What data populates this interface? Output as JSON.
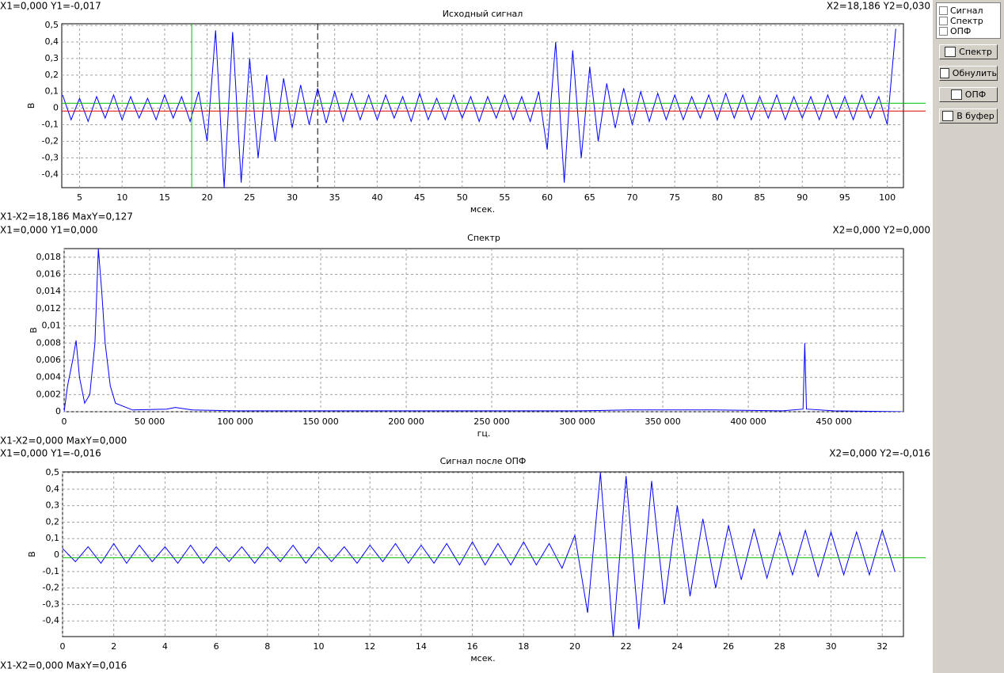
{
  "chart_data": [
    {
      "type": "line",
      "title": "Исходный сигнал",
      "color": "#0000ff",
      "ylabel": "В",
      "xlabel": "мсек.",
      "cursor_left": "X1=0,000 Y1=-0,017",
      "cursor_right": "X2=18,186 Y2=0,030",
      "cursor_diff": "X1-X2=18,186 MaxY=0,127",
      "cursors": {
        "x2": 18.186,
        "y1": -0.017,
        "y2": 0.03
      },
      "marker_x": 33,
      "xlim": [
        2.9,
        101.9
      ],
      "ylim": [
        -0.48,
        0.51
      ],
      "grid": true,
      "xticks": [
        5,
        10,
        15,
        20,
        25,
        30,
        35,
        40,
        45,
        50,
        55,
        60,
        65,
        70,
        75,
        80,
        85,
        90,
        95,
        100
      ],
      "yticks": [
        {
          "value": 0.5,
          "label": "0,5"
        },
        {
          "value": 0.4,
          "label": "0,4"
        },
        {
          "value": 0.3,
          "label": "0,3"
        },
        {
          "value": 0.2,
          "label": "0,2"
        },
        {
          "value": 0.1,
          "label": "0,1"
        },
        0,
        {
          "value": -0.1,
          "label": "-0,1"
        },
        {
          "value": -0.2,
          "label": "-0,2"
        },
        {
          "value": -0.3,
          "label": "-0,3"
        },
        {
          "value": -0.4,
          "label": "-0,4"
        }
      ],
      "x": [
        3,
        4,
        5,
        6,
        7,
        8,
        9,
        10,
        11,
        12,
        13,
        14,
        15,
        16,
        17,
        18,
        19,
        20,
        21,
        22,
        23,
        24,
        25,
        26,
        27,
        28,
        29,
        30,
        31,
        32,
        33,
        34,
        35,
        36,
        37,
        38,
        39,
        40,
        41,
        42,
        43,
        44,
        45,
        46,
        47,
        48,
        49,
        50,
        51,
        52,
        53,
        54,
        55,
        56,
        57,
        58,
        59,
        60,
        61,
        62,
        63,
        64,
        65,
        66,
        67,
        68,
        69,
        70,
        71,
        72,
        73,
        74,
        75,
        76,
        77,
        78,
        79,
        80,
        81,
        82,
        83,
        84,
        85,
        86,
        87,
        88,
        89,
        90,
        91,
        92,
        93,
        94,
        95,
        96,
        97,
        98,
        99,
        100,
        101
      ],
      "values": [
        0.08,
        -0.07,
        0.06,
        -0.08,
        0.07,
        -0.06,
        0.08,
        -0.07,
        0.07,
        -0.06,
        0.06,
        -0.07,
        0.08,
        -0.06,
        0.07,
        -0.08,
        0.1,
        -0.2,
        0.47,
        -0.48,
        0.46,
        -0.45,
        0.3,
        -0.3,
        0.2,
        -0.2,
        0.18,
        -0.12,
        0.14,
        -0.1,
        0.12,
        -0.09,
        0.1,
        -0.08,
        0.09,
        -0.07,
        0.08,
        -0.07,
        0.08,
        -0.06,
        0.07,
        -0.08,
        0.09,
        -0.07,
        0.06,
        -0.07,
        0.08,
        -0.06,
        0.07,
        -0.08,
        0.07,
        -0.06,
        0.08,
        -0.07,
        0.07,
        -0.08,
        0.1,
        -0.25,
        0.4,
        -0.45,
        0.35,
        -0.3,
        0.25,
        -0.2,
        0.15,
        -0.12,
        0.12,
        -0.1,
        0.1,
        -0.08,
        0.09,
        -0.07,
        0.08,
        -0.07,
        0.07,
        -0.06,
        0.08,
        -0.07,
        0.09,
        -0.06,
        0.08,
        -0.07,
        0.07,
        -0.06,
        0.08,
        -0.07,
        0.07,
        -0.06,
        0.07,
        -0.07,
        0.08,
        -0.06,
        0.07,
        -0.07,
        0.08,
        -0.06,
        0.07,
        -0.1,
        0.48
      ]
    },
    {
      "type": "line",
      "title": "Спектр",
      "color": "#0000ff",
      "ylabel": "В",
      "xlabel": "гц.",
      "cursor_left": "X1=0,000 Y1=0,000",
      "cursor_right": "X2=0,000 Y2=0,000",
      "cursor_diff": "X1-X2=0,000 MaxY=0,000",
      "xlim": [
        0,
        490700
      ],
      "ylim": [
        0,
        0.019
      ],
      "grid": true,
      "xticks": [
        0,
        {
          "value": 50000,
          "label": "50 000"
        },
        {
          "value": 100000,
          "label": "100 000"
        },
        {
          "value": 150000,
          "label": "150 000"
        },
        {
          "value": 200000,
          "label": "200 000"
        },
        {
          "value": 250000,
          "label": "250 000"
        },
        {
          "value": 300000,
          "label": "300 000"
        },
        {
          "value": 350000,
          "label": "350 000"
        },
        {
          "value": 400000,
          "label": "400 000"
        },
        {
          "value": 450000,
          "label": "450 000"
        }
      ],
      "yticks": [
        0,
        {
          "value": 0.002,
          "label": "0,002"
        },
        {
          "value": 0.004,
          "label": "0,004"
        },
        {
          "value": 0.006,
          "label": "0,006"
        },
        {
          "value": 0.008,
          "label": "0,008"
        },
        {
          "value": 0.01,
          "label": "0,01"
        },
        {
          "value": 0.012,
          "label": "0,012"
        },
        {
          "value": 0.014,
          "label": "0,014"
        },
        {
          "value": 0.016,
          "label": "0,016"
        },
        {
          "value": 0.018,
          "label": "0,018"
        }
      ],
      "x": [
        0,
        2000,
        5000,
        7000,
        9000,
        12000,
        15000,
        18000,
        20000,
        22000,
        24000,
        27000,
        30000,
        40000,
        60000,
        65000,
        75000,
        100000,
        200000,
        300000,
        330000,
        380000,
        420000,
        432000,
        433000,
        434000,
        450000,
        490000
      ],
      "values": [
        0,
        0.003,
        0.006,
        0.0083,
        0.004,
        0.001,
        0.002,
        0.008,
        0.019,
        0.014,
        0.008,
        0.003,
        0.001,
        0.0002,
        0.0003,
        0.0005,
        0.0002,
        0.0001,
        0.0001,
        0.0001,
        0.0002,
        0.0002,
        0.0001,
        0.0003,
        0.008,
        0.0003,
        0.0001,
        0
      ]
    },
    {
      "type": "line",
      "title": "Сигнал после ОПФ",
      "color": "#0000ff",
      "ylabel": "В",
      "xlabel": "мсек.",
      "cursor_left": "X1=0,000 Y1=-0,016",
      "cursor_right": "X2=0,000 Y2=-0,016",
      "cursor_diff": "X1-X2=0,000 MaxY=0,016",
      "cursors": {
        "y2": -0.016
      },
      "xlim": [
        0,
        32.83
      ],
      "ylim": [
        -0.495,
        0.505
      ],
      "grid": true,
      "xticks": [
        0,
        2,
        4,
        6,
        8,
        10,
        12,
        14,
        16,
        18,
        20,
        22,
        24,
        26,
        28,
        30,
        32
      ],
      "yticks": [
        {
          "value": 0.5,
          "label": "0,5"
        },
        {
          "value": 0.4,
          "label": "0,4"
        },
        {
          "value": 0.3,
          "label": "0,3"
        },
        {
          "value": 0.2,
          "label": "0,2"
        },
        {
          "value": 0.1,
          "label": "0,1"
        },
        0,
        {
          "value": -0.1,
          "label": "-0,1"
        },
        {
          "value": -0.2,
          "label": "-0,2"
        },
        {
          "value": -0.3,
          "label": "-0,3"
        },
        {
          "value": -0.4,
          "label": "-0,4"
        }
      ],
      "x": [
        0,
        0.5,
        1,
        1.5,
        2,
        2.5,
        3,
        3.5,
        4,
        4.5,
        5,
        5.5,
        6,
        6.5,
        7,
        7.5,
        8,
        8.5,
        9,
        9.5,
        10,
        10.5,
        11,
        11.5,
        12,
        12.5,
        13,
        13.5,
        14,
        14.5,
        15,
        15.5,
        16,
        16.5,
        17,
        17.5,
        18,
        18.5,
        19,
        19.5,
        20,
        20.5,
        21,
        21.5,
        22,
        22.5,
        23,
        23.5,
        24,
        24.5,
        25,
        25.5,
        26,
        26.5,
        27,
        27.5,
        28,
        28.5,
        29,
        29.5,
        30,
        30.5,
        31,
        31.5,
        32,
        32.5
      ],
      "values": [
        0.04,
        -0.04,
        0.05,
        -0.05,
        0.07,
        -0.05,
        0.06,
        -0.04,
        0.05,
        -0.05,
        0.06,
        -0.05,
        0.05,
        -0.04,
        0.05,
        -0.05,
        0.05,
        -0.04,
        0.06,
        -0.05,
        0.05,
        -0.04,
        0.05,
        -0.05,
        0.06,
        -0.04,
        0.07,
        -0.05,
        0.06,
        -0.05,
        0.07,
        -0.06,
        0.08,
        -0.06,
        0.07,
        -0.06,
        0.08,
        -0.06,
        0.07,
        -0.08,
        0.12,
        -0.35,
        0.5,
        -0.5,
        0.48,
        -0.45,
        0.45,
        -0.3,
        0.3,
        -0.25,
        0.22,
        -0.2,
        0.18,
        -0.15,
        0.16,
        -0.14,
        0.14,
        -0.12,
        0.15,
        -0.13,
        0.14,
        -0.12,
        0.14,
        -0.12,
        0.15,
        -0.1
      ]
    }
  ],
  "toolbar": {
    "checkboxes": [
      "Сигнал",
      "Спектр",
      "ОПФ"
    ],
    "buttons": [
      "Спектр",
      "Обнулить",
      "ОПФ",
      "В буфер"
    ]
  }
}
